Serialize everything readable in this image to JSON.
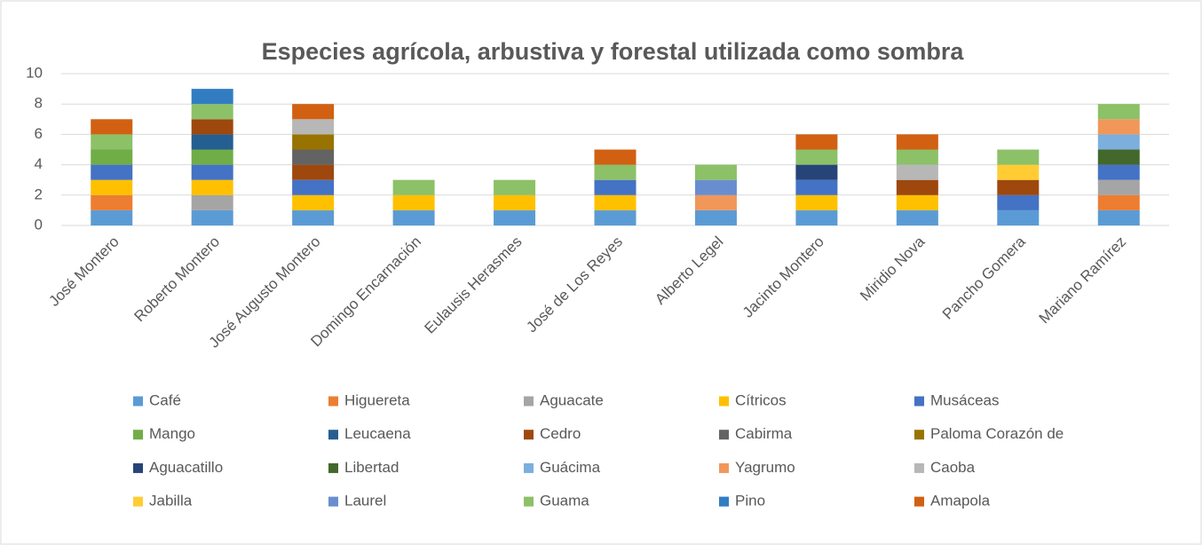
{
  "chart_data": {
    "type": "stacked_bar",
    "title": "Especies agrícola, arbustiva y forestal utilizada como sombra",
    "categories": [
      "José Montero",
      "Roberto Montero",
      "José Augusto Montero",
      "Domingo Encarnación",
      "Eulausis Herasmes",
      "José de Los Reyes",
      "Alberto Legel",
      "Jacinto Montero",
      "Miridio Nova",
      "Pancho Gomera",
      "Mariano Ramírez"
    ],
    "ylim": [
      0,
      10
    ],
    "yticks": [
      0,
      2,
      4,
      6,
      8,
      10
    ],
    "grid": true,
    "legend": "bottom",
    "series": [
      {
        "name": "Café",
        "color": "#5B9BD5",
        "values": [
          1,
          1,
          1,
          1,
          1,
          1,
          1,
          1,
          1,
          1,
          1
        ]
      },
      {
        "name": "Higuereta",
        "color": "#ED7D31",
        "values": [
          1,
          0,
          0,
          0,
          0,
          0,
          0,
          0,
          0,
          0,
          1
        ]
      },
      {
        "name": "Aguacate",
        "color": "#A5A5A5",
        "values": [
          0,
          1,
          0,
          0,
          0,
          0,
          0,
          0,
          0,
          0,
          1
        ]
      },
      {
        "name": "Cítricos",
        "color": "#FFC000",
        "values": [
          1,
          1,
          1,
          1,
          1,
          1,
          0,
          1,
          1,
          0,
          0
        ]
      },
      {
        "name": "Musáceas",
        "color": "#4472C4",
        "values": [
          1,
          1,
          1,
          0,
          0,
          1,
          0,
          1,
          0,
          1,
          1
        ]
      },
      {
        "name": "Mango",
        "color": "#70AD47",
        "values": [
          1,
          1,
          0,
          0,
          0,
          0,
          0,
          0,
          0,
          0,
          0
        ]
      },
      {
        "name": "Leucaena",
        "color": "#255E91",
        "values": [
          0,
          1,
          0,
          0,
          0,
          0,
          0,
          0,
          0,
          0,
          0
        ]
      },
      {
        "name": "Cedro",
        "color": "#9E480E",
        "values": [
          0,
          1,
          1,
          0,
          0,
          0,
          0,
          0,
          1,
          1,
          0
        ]
      },
      {
        "name": "Cabirma",
        "color": "#636363",
        "values": [
          0,
          0,
          1,
          0,
          0,
          0,
          0,
          0,
          0,
          0,
          0
        ]
      },
      {
        "name": "Paloma Corazón de",
        "color": "#997300",
        "values": [
          0,
          0,
          1,
          0,
          0,
          0,
          0,
          0,
          0,
          0,
          0
        ]
      },
      {
        "name": "Aguacatillo",
        "color": "#264478",
        "values": [
          0,
          0,
          0,
          0,
          0,
          0,
          0,
          1,
          0,
          0,
          0
        ]
      },
      {
        "name": "Libertad",
        "color": "#43682B",
        "values": [
          0,
          0,
          0,
          0,
          0,
          0,
          0,
          0,
          0,
          0,
          1
        ]
      },
      {
        "name": "Guácima",
        "color": "#7CAFDD",
        "values": [
          0,
          0,
          0,
          0,
          0,
          0,
          0,
          0,
          0,
          0,
          1
        ]
      },
      {
        "name": "Yagrumo",
        "color": "#F1975A",
        "values": [
          0,
          0,
          0,
          0,
          0,
          0,
          1,
          0,
          0,
          0,
          1
        ]
      },
      {
        "name": "Caoba",
        "color": "#B7B7B7",
        "values": [
          0,
          0,
          1,
          0,
          0,
          0,
          0,
          0,
          1,
          0,
          0
        ]
      },
      {
        "name": "Jabilla",
        "color": "#FFCD33",
        "values": [
          0,
          0,
          0,
          0,
          0,
          0,
          0,
          0,
          0,
          1,
          0
        ]
      },
      {
        "name": "Laurel",
        "color": "#698ED0",
        "values": [
          0,
          0,
          0,
          0,
          0,
          0,
          1,
          0,
          0,
          0,
          0
        ]
      },
      {
        "name": "Guama",
        "color": "#8CC168",
        "values": [
          1,
          1,
          0,
          1,
          1,
          1,
          1,
          1,
          1,
          1,
          1
        ]
      },
      {
        "name": "Pino",
        "color": "#327DC2",
        "values": [
          0,
          1,
          0,
          0,
          0,
          0,
          0,
          0,
          0,
          0,
          0
        ]
      },
      {
        "name": "Amapola",
        "color": "#D26012",
        "values": [
          1,
          0,
          1,
          0,
          0,
          1,
          0,
          1,
          1,
          0,
          0
        ]
      }
    ]
  }
}
